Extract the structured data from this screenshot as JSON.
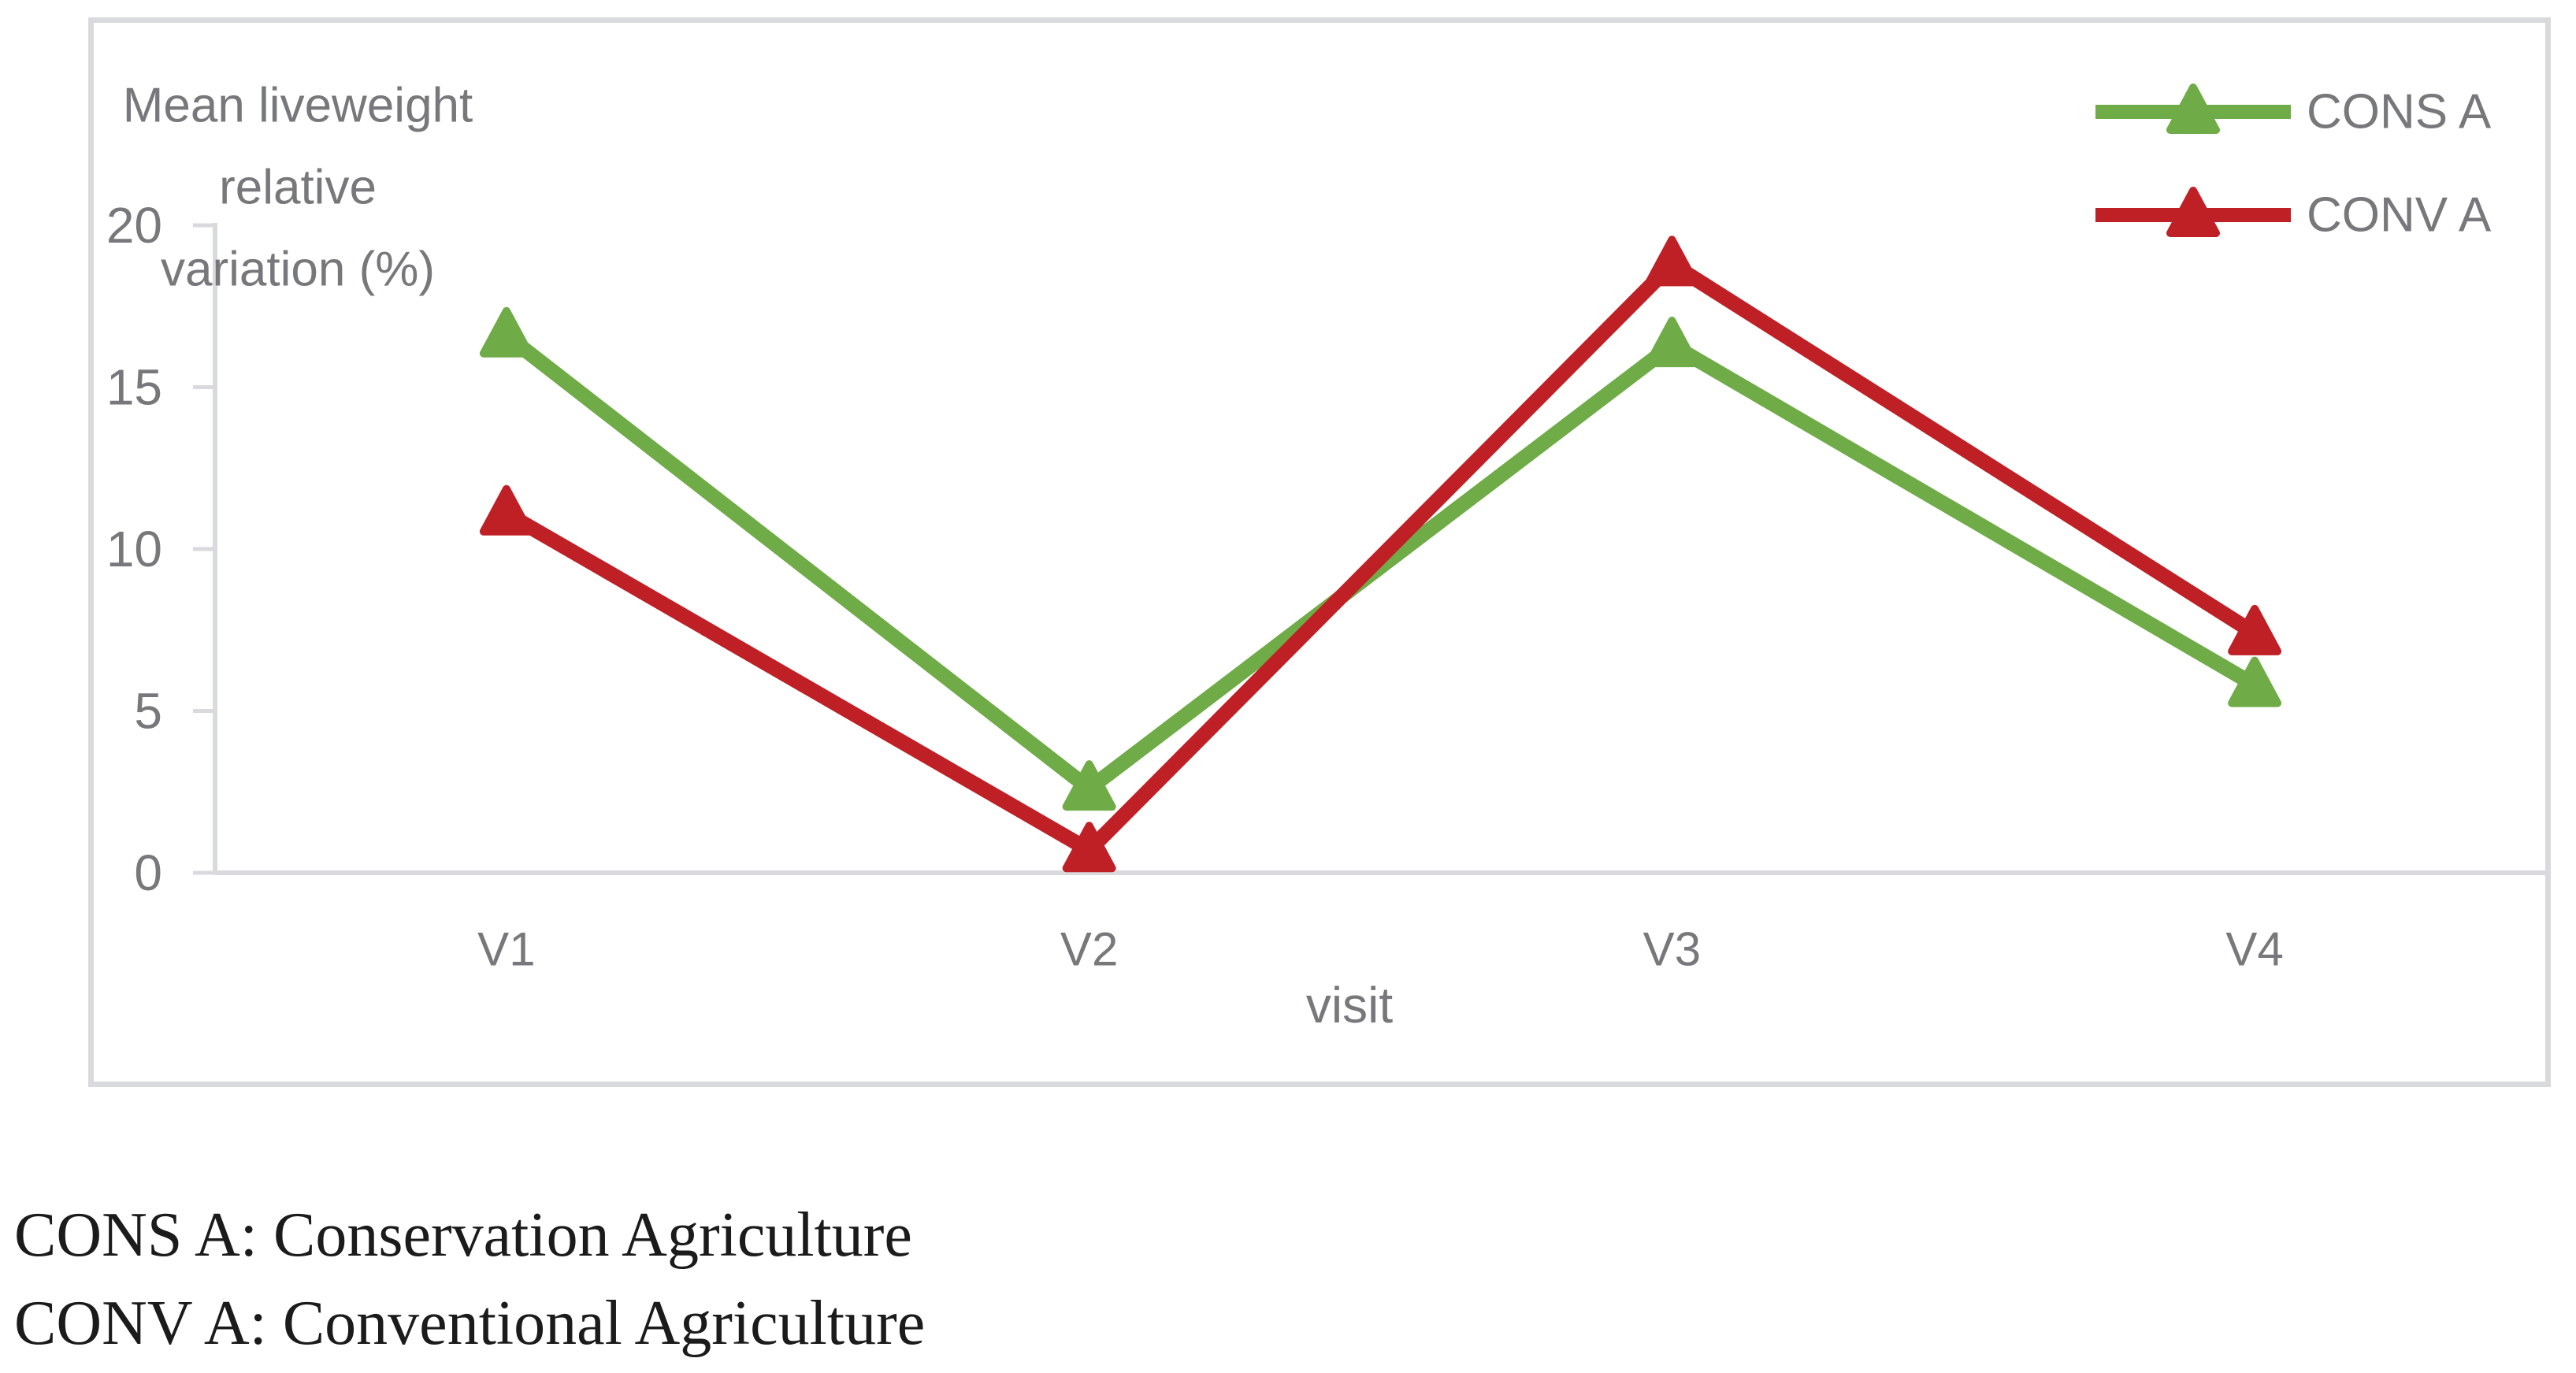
{
  "chart_data": {
    "type": "line",
    "title": "",
    "y_axis_title": "Mean liveweight relative variation (%)",
    "y_axis_title_lines": [
      "Mean liveweight",
      "relative",
      "variation (%)"
    ],
    "x_axis_title": "visit",
    "categories": [
      "V1",
      "V2",
      "V3",
      "V4"
    ],
    "series": [
      {
        "name": "CONS A",
        "color": "#6fac47",
        "marker": "triangle",
        "values": [
          16.6,
          2.6,
          16.3,
          5.8
        ]
      },
      {
        "name": "CONV A",
        "color": "#bf2026",
        "marker": "triangle",
        "values": [
          11.1,
          0.7,
          18.8,
          7.4
        ]
      }
    ],
    "ylim": [
      0,
      20
    ],
    "yticks": [
      0,
      5,
      10,
      15,
      20
    ],
    "grid": false,
    "legend_position": "top-right"
  },
  "caption": {
    "lines": [
      "CONS A: Conservation Agriculture",
      "CONV A: Conventional Agriculture"
    ]
  },
  "colors": {
    "axis": "#d9dade",
    "chart_text": "#77787b",
    "caption_text": "#1b1b1b",
    "plot_background": "#ffffff"
  }
}
